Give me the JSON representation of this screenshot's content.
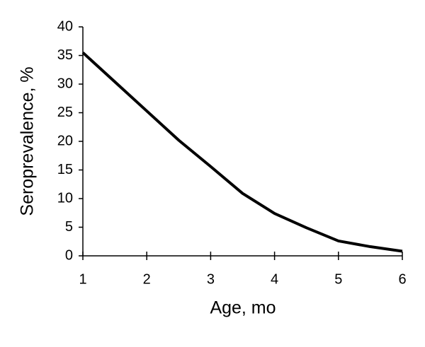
{
  "chart_data": {
    "type": "line",
    "x_label": "Age, mo",
    "y_label": "Seroprevalence, %",
    "x": [
      1,
      1.5,
      2,
      2.5,
      3,
      3.5,
      4,
      4.5,
      5,
      5.5,
      6
    ],
    "series": [
      {
        "color": "#000000",
        "values": [
          35.5,
          30.4,
          25.3,
          20.2,
          15.6,
          10.9,
          7.4,
          4.9,
          2.6,
          1.6,
          0.8
        ]
      }
    ],
    "xlim": [
      1,
      6
    ],
    "xticks": [
      1,
      2,
      3,
      4,
      5,
      6
    ],
    "ylim": [
      0,
      40
    ],
    "yticks": [
      0,
      5,
      10,
      15,
      20,
      25,
      30,
      35,
      40
    ]
  }
}
